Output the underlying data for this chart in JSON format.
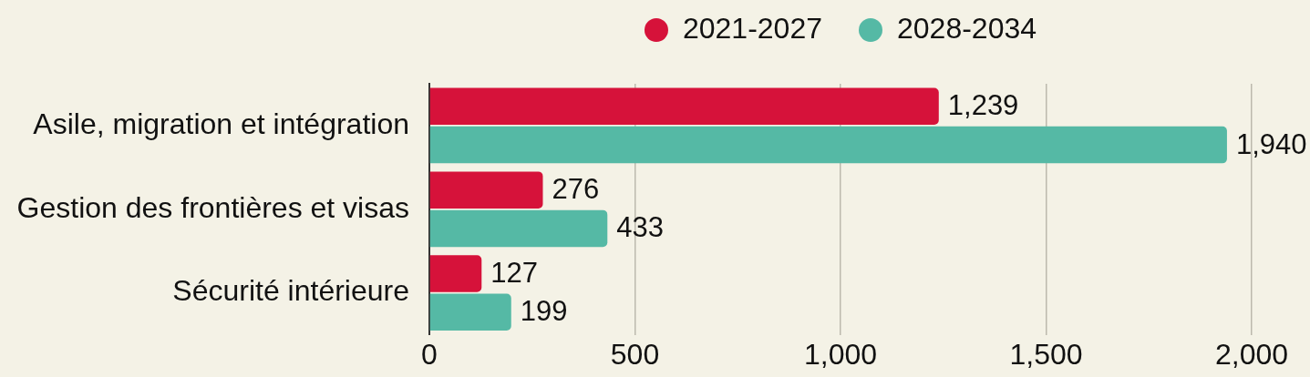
{
  "chart_data": {
    "type": "bar",
    "orientation": "horizontal",
    "categories": [
      "Asile, migration et intégration",
      "Gestion des frontières et visas",
      "Sécurité intérieure"
    ],
    "series": [
      {
        "name": "2021-2027",
        "color": "#d6123a",
        "values": [
          1239,
          276,
          127
        ],
        "value_labels": [
          "1,239",
          "276",
          "127"
        ]
      },
      {
        "name": "2028-2034",
        "color": "#55b9a5",
        "values": [
          1940,
          433,
          199
        ],
        "value_labels": [
          "1,940",
          "433",
          "199"
        ]
      }
    ],
    "xlim": [
      0,
      2000
    ],
    "xticks": [
      0,
      500,
      {
        "value": 1000,
        "label": "1,000"
      },
      {
        "value": 1500,
        "label": "1,500"
      },
      {
        "value": 2000,
        "label": "2,000"
      }
    ],
    "grid": "x",
    "legend": "top"
  }
}
